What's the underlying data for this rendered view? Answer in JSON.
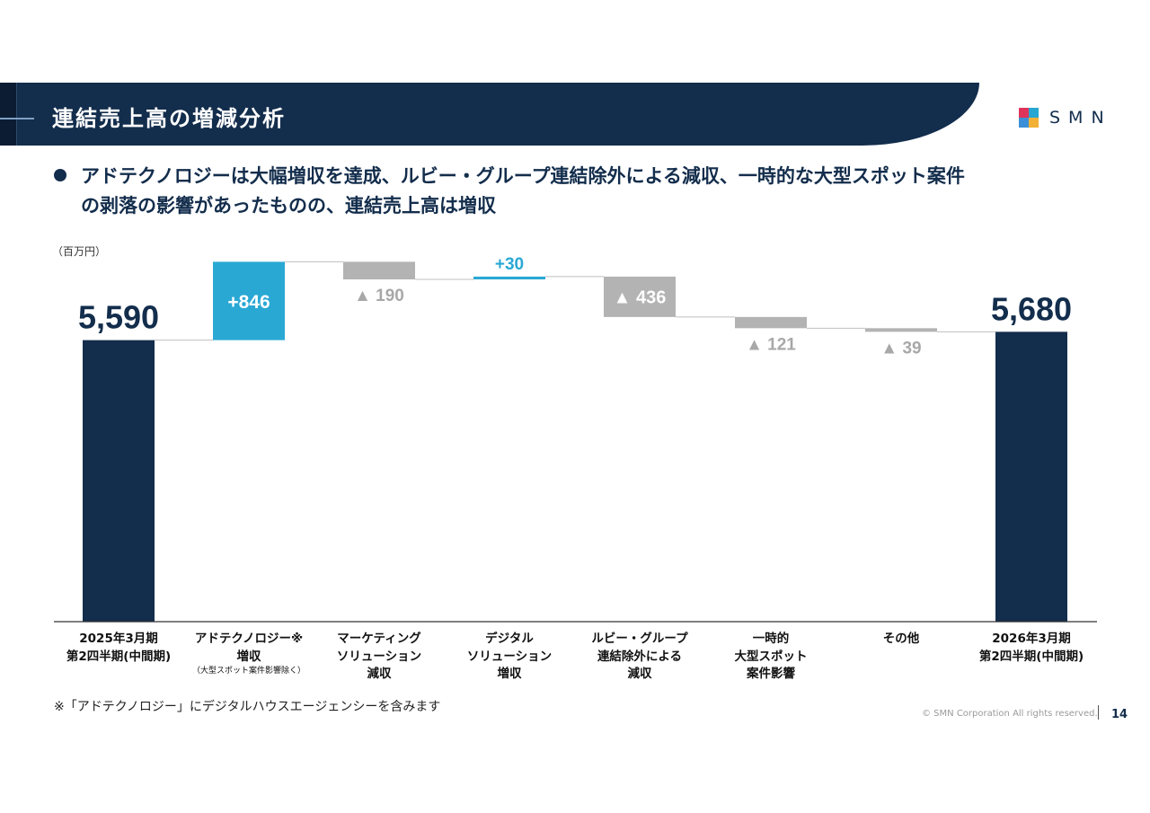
{
  "header": {
    "title": "連結売上高の増減分析",
    "logo_text": "SMN",
    "logo_colors": [
      "#e0335b",
      "#26a6d1",
      "#3c8fd6",
      "#f2b134"
    ]
  },
  "subtitle": {
    "line1": "アドテクノロジーは大幅増収を達成、ルビー・グループ連結除外による減収、一時的な大型スポット案件",
    "line2": "の剥落の影響があったものの、連結売上高は増収"
  },
  "unit_label": "（百万円）",
  "chart_data": {
    "type": "bar",
    "subtype": "waterfall",
    "categories": [
      "2025年3月期 第2四半期(中間期)",
      "アドテクノロジー※ 増収 （大型スポット案件影響除く）",
      "マーケティング ソリューション 減収",
      "デジタル ソリューション 増収",
      "ルビー・グループ 連結除外による 減収",
      "一時的 大型スポット 案件影響",
      "その他",
      "2026年3月期 第2四半期(中間期)"
    ],
    "category_lines": [
      {
        "lines": [
          "2025年3月期",
          "第2四半期(中間期)"
        ],
        "sub": ""
      },
      {
        "lines": [
          "アドテクノロジー※",
          "増収"
        ],
        "sub": "（大型スポット案件影響除く）"
      },
      {
        "lines": [
          "マーケティング",
          "ソリューション",
          "減収"
        ],
        "sub": ""
      },
      {
        "lines": [
          "デジタル",
          "ソリューション",
          "増収"
        ],
        "sub": ""
      },
      {
        "lines": [
          "ルビー・グループ",
          "連結除外による",
          "減収"
        ],
        "sub": ""
      },
      {
        "lines": [
          "一時的",
          "大型スポット",
          "案件影響"
        ],
        "sub": ""
      },
      {
        "lines": [
          "その他"
        ],
        "sub": ""
      },
      {
        "lines": [
          "2026年3月期",
          "第2四半期(中間期)"
        ],
        "sub": ""
      }
    ],
    "values": [
      5590,
      846,
      -190,
      30,
      -436,
      -121,
      -39,
      5680
    ],
    "kinds": [
      "total",
      "increase",
      "decrease",
      "increase",
      "decrease",
      "decrease",
      "decrease",
      "total"
    ],
    "data_labels": [
      "5,590",
      "+846",
      "▲ 190",
      "+30",
      "▲ 436",
      "▲ 121",
      "▲ 39",
      "5,680"
    ],
    "ylim": [
      2550,
      6440
    ],
    "colors": {
      "total": "#132d4c",
      "increase": "#2aa8d4",
      "decrease": "#b3b3b3",
      "connector": "#bfbfbf",
      "baseline": "#333333"
    },
    "legend": "none",
    "grid": false
  },
  "footnote": "※「アドテクノロジー」にデジタルハウスエージェンシーを含みます",
  "footer": {
    "copyright": "© SMN Corporation All rights reserved.",
    "page_number": "14"
  }
}
